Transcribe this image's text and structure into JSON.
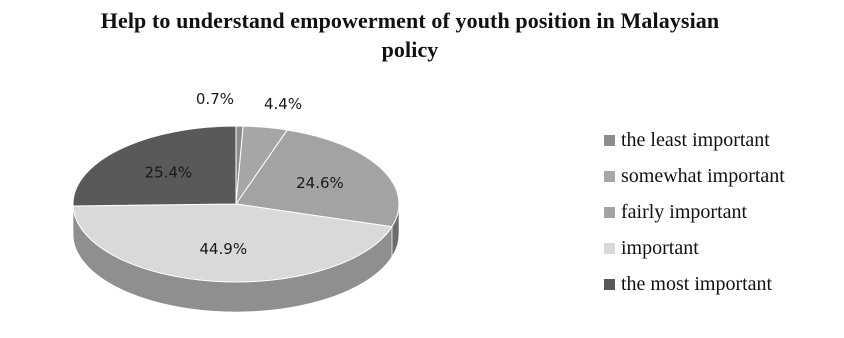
{
  "title": {
    "line1": "Help to understand empowerment  of youth position in Malaysian",
    "line2": "policy"
  },
  "chart_data": {
    "type": "pie",
    "title": "Help to understand empowerment  of youth position in Malaysian policy",
    "categories": [
      "the least important",
      "somewhat important",
      "fairly important",
      "important",
      "the most important"
    ],
    "values": [
      0.7,
      4.4,
      24.6,
      44.9,
      25.4
    ],
    "value_labels": [
      "0.7%",
      "4.4%",
      "24.6%",
      "44.9%",
      "25.4%"
    ],
    "colors": [
      "#8c8c8c",
      "#a6a6a6",
      "#a3a3a3",
      "#d9d9d9",
      "#595959"
    ],
    "style": "3d",
    "legend_position": "right"
  }
}
